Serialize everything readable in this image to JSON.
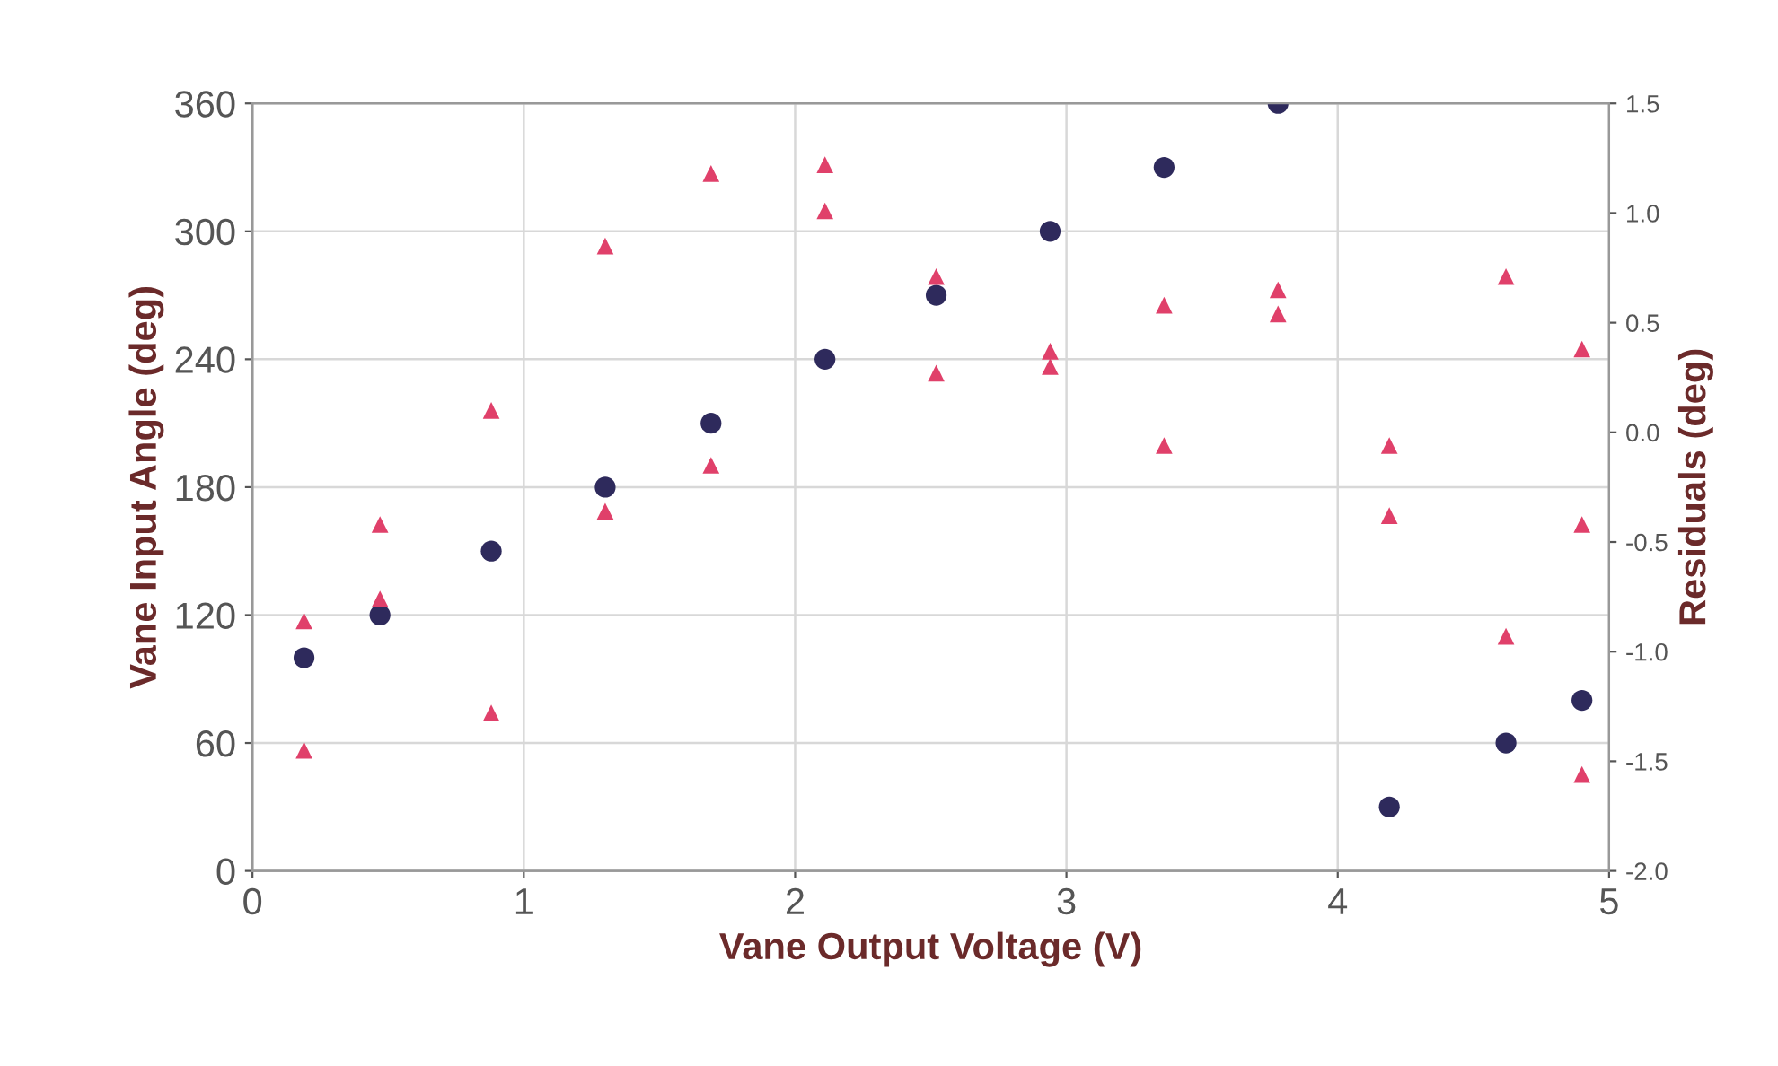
{
  "chart_data": {
    "type": "scatter",
    "xlabel": "Vane Output Voltage (V)",
    "ylabel": "Vane Input Angle (deg)",
    "y2label": "Residuals (deg)",
    "xlim": [
      0,
      5
    ],
    "xticks": [
      0,
      1,
      2,
      3,
      4,
      5
    ],
    "ylim": [
      0,
      360
    ],
    "yticks": [
      0,
      60,
      120,
      180,
      240,
      300,
      360
    ],
    "y2lim": [
      -2.0,
      1.5
    ],
    "y2ticks": [
      {
        "value": -2.0,
        "label": "-2.0"
      },
      {
        "value": -1.5,
        "label": "-1.5"
      },
      {
        "value": -1.0,
        "label": "-1.0"
      },
      {
        "value": -0.5,
        "label": "-0.5"
      },
      {
        "value": 0.0,
        "label": "0.0"
      },
      {
        "value": 0.5,
        "label": "0.5"
      },
      {
        "value": 1.0,
        "label": "1.0"
      },
      {
        "value": 1.5,
        "label": "1.5"
      }
    ],
    "grid": true,
    "series": [
      {
        "color": "#e0406a",
        "marker": "triangle",
        "axis": "y2",
        "x": [
          0.19,
          0.19,
          0.47,
          0.47,
          0.88,
          0.88,
          1.3,
          1.3,
          1.69,
          1.69,
          2.11,
          2.11,
          2.52,
          2.52,
          2.94,
          2.94,
          3.36,
          3.36,
          3.78,
          3.78,
          4.19,
          4.19,
          4.62,
          4.62,
          4.9,
          4.9,
          4.9
        ],
        "values": [
          -0.86,
          -1.45,
          -0.42,
          -0.76,
          0.1,
          -1.28,
          0.85,
          -0.36,
          1.18,
          -0.15,
          1.22,
          1.01,
          0.71,
          0.27,
          0.37,
          0.3,
          0.58,
          -0.06,
          0.65,
          0.54,
          -0.06,
          -0.38,
          0.71,
          -0.93,
          0.38,
          -0.42,
          -1.56
        ]
      },
      {
        "color": "#2e2a5c",
        "marker": "circle",
        "x": [
          0.19,
          0.47,
          0.88,
          1.3,
          1.69,
          2.11,
          2.52,
          2.94,
          3.36,
          3.78,
          4.19,
          4.62,
          4.9
        ],
        "values": [
          100,
          120,
          150,
          180,
          210,
          240,
          270,
          300,
          330,
          360,
          30,
          60,
          80
        ]
      }
    ]
  }
}
